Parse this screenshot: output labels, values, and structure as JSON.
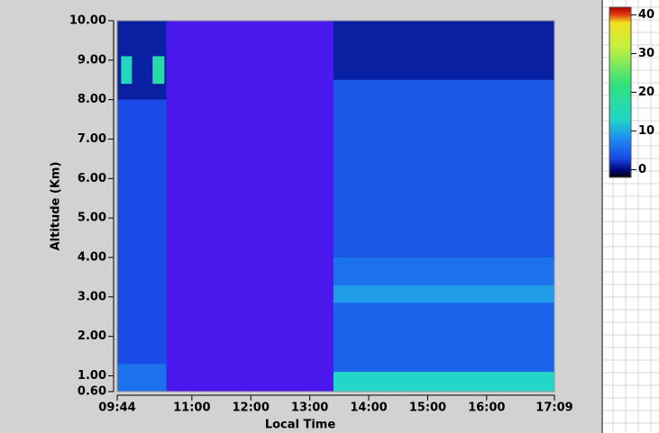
{
  "chart_data": {
    "type": "heatmap",
    "xlabel": "Local Time",
    "ylabel": "Altitude (Km)",
    "xlim": [
      584,
      1029
    ],
    "ylim": [
      0.6,
      10
    ],
    "xticks": [
      {
        "value": 584,
        "label": "09:44"
      },
      {
        "value": 660,
        "label": "11:00"
      },
      {
        "value": 720,
        "label": "12:00"
      },
      {
        "value": 780,
        "label": "13:00"
      },
      {
        "value": 840,
        "label": "14:00"
      },
      {
        "value": 900,
        "label": "15:00"
      },
      {
        "value": 960,
        "label": "16:00"
      },
      {
        "value": 1029,
        "label": "17:09"
      }
    ],
    "yticks": [
      {
        "value": 0.6,
        "label": "0.60"
      },
      {
        "value": 1,
        "label": "1.00"
      },
      {
        "value": 2,
        "label": "2.00"
      },
      {
        "value": 3,
        "label": "3.00"
      },
      {
        "value": 4,
        "label": "4.00"
      },
      {
        "value": 5,
        "label": "5.00"
      },
      {
        "value": 6,
        "label": "6.00"
      },
      {
        "value": 7,
        "label": "7.00"
      },
      {
        "value": 8,
        "label": "8.00"
      },
      {
        "value": 9,
        "label": "9.00"
      },
      {
        "value": 10,
        "label": "10.00"
      }
    ],
    "cells": [
      {
        "x": [
          584,
          634
        ],
        "y": [
          0.6,
          10
        ],
        "value": 3
      },
      {
        "x": [
          584,
          634
        ],
        "y": [
          0.6,
          1.3
        ],
        "value": 6
      },
      {
        "x": [
          584,
          634
        ],
        "y": [
          8.0,
          10
        ],
        "value": 1
      },
      {
        "x": [
          588,
          599
        ],
        "y": [
          8.4,
          9.1
        ],
        "value": 14
      },
      {
        "x": [
          620,
          632
        ],
        "y": [
          8.4,
          9.1
        ],
        "value": 17
      },
      {
        "x": [
          804,
          1029
        ],
        "y": [
          0.6,
          10
        ],
        "value": 4
      },
      {
        "x": [
          804,
          1029
        ],
        "y": [
          8.5,
          10
        ],
        "value": 1
      },
      {
        "x": [
          804,
          1029
        ],
        "y": [
          3.3,
          4.0
        ],
        "value": 6
      },
      {
        "x": [
          804,
          1029
        ],
        "y": [
          2.85,
          3.3
        ],
        "value": 9
      },
      {
        "x": [
          804,
          1029
        ],
        "y": [
          1.1,
          2.85
        ],
        "value": 5
      },
      {
        "x": [
          804,
          1029
        ],
        "y": [
          0.6,
          1.1
        ],
        "value": 13
      }
    ],
    "nodata": {
      "x": [
        634,
        804
      ],
      "color": "#4b18ee"
    },
    "colorbar": {
      "lim": [
        -2,
        42
      ],
      "ticks": [
        0,
        10,
        20,
        30,
        40
      ],
      "stops": [
        {
          "value": -2,
          "color": "#000000"
        },
        {
          "value": 0,
          "color": "#000a80"
        },
        {
          "value": 3,
          "color": "#1a4be6"
        },
        {
          "value": 8,
          "color": "#1e8cf0"
        },
        {
          "value": 13,
          "color": "#22d6c8"
        },
        {
          "value": 22,
          "color": "#30e07a"
        },
        {
          "value": 32,
          "color": "#c8f03c"
        },
        {
          "value": 38,
          "color": "#f0e020"
        },
        {
          "value": 40,
          "color": "#e04010"
        },
        {
          "value": 42,
          "color": "#b00000"
        }
      ]
    }
  }
}
